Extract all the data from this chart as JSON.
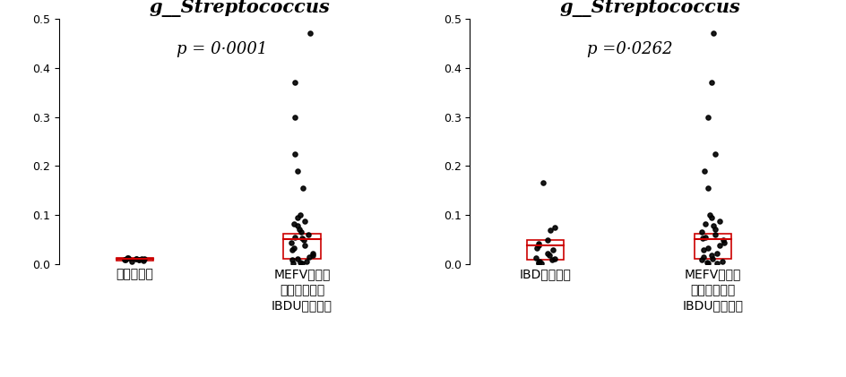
{
  "title": "g__Streptococcus",
  "panel1": {
    "p_text": "p = 0·0001",
    "group1_label": "健常小照者",
    "group2_label": "MEFV遷伝子\n変異を有する\nIBDU患者さん",
    "group1_dots": [
      0.005,
      0.007,
      0.009,
      0.01,
      0.012,
      0.013,
      0.008,
      0.011,
      0.01,
      0.009,
      0.008,
      0.011
    ],
    "group1_q1": 0.007,
    "group1_median": 0.01,
    "group1_q3": 0.012,
    "group2_dots": [
      0.47,
      0.37,
      0.3,
      0.225,
      0.19,
      0.155,
      0.1,
      0.095,
      0.088,
      0.082,
      0.078,
      0.07,
      0.065,
      0.06,
      0.055,
      0.052,
      0.048,
      0.043,
      0.038,
      0.033,
      0.028,
      0.022,
      0.018,
      0.014,
      0.011,
      0.008,
      0.005,
      0.003,
      0.001,
      0.001
    ],
    "group2_q1": 0.01,
    "group2_median": 0.05,
    "group2_q3": 0.062
  },
  "panel2": {
    "p_text": "p =0·0262",
    "group1_label": "IBD患者さん",
    "group2_label": "MEFV遷伝子\n変異を有する\nIBDU患者さん",
    "group1_dots": [
      0.165,
      0.075,
      0.068,
      0.048,
      0.042,
      0.038,
      0.032,
      0.028,
      0.022,
      0.018,
      0.013,
      0.01,
      0.008,
      0.005,
      0.003,
      0.002,
      0.001
    ],
    "group1_q1": 0.008,
    "group1_median": 0.038,
    "group1_q3": 0.048,
    "group2_dots": [
      0.47,
      0.37,
      0.3,
      0.225,
      0.19,
      0.155,
      0.1,
      0.095,
      0.088,
      0.082,
      0.078,
      0.07,
      0.065,
      0.06,
      0.055,
      0.052,
      0.048,
      0.043,
      0.038,
      0.033,
      0.028,
      0.022,
      0.018,
      0.014,
      0.011,
      0.008,
      0.005,
      0.003,
      0.001,
      0.001
    ],
    "group2_q1": 0.01,
    "group2_median": 0.05,
    "group2_q3": 0.062
  },
  "ylim": [
    0,
    0.5
  ],
  "yticks": [
    0,
    0.1,
    0.2,
    0.3,
    0.4,
    0.5
  ],
  "dot_color": "#000000",
  "box_color": "#cc0000",
  "background_color": "#ffffff",
  "dot_size": 14,
  "dot_alpha": 0.9,
  "title_fontsize": 15,
  "p_fontsize": 13,
  "tick_fontsize": 9,
  "label_fontsize": 10
}
